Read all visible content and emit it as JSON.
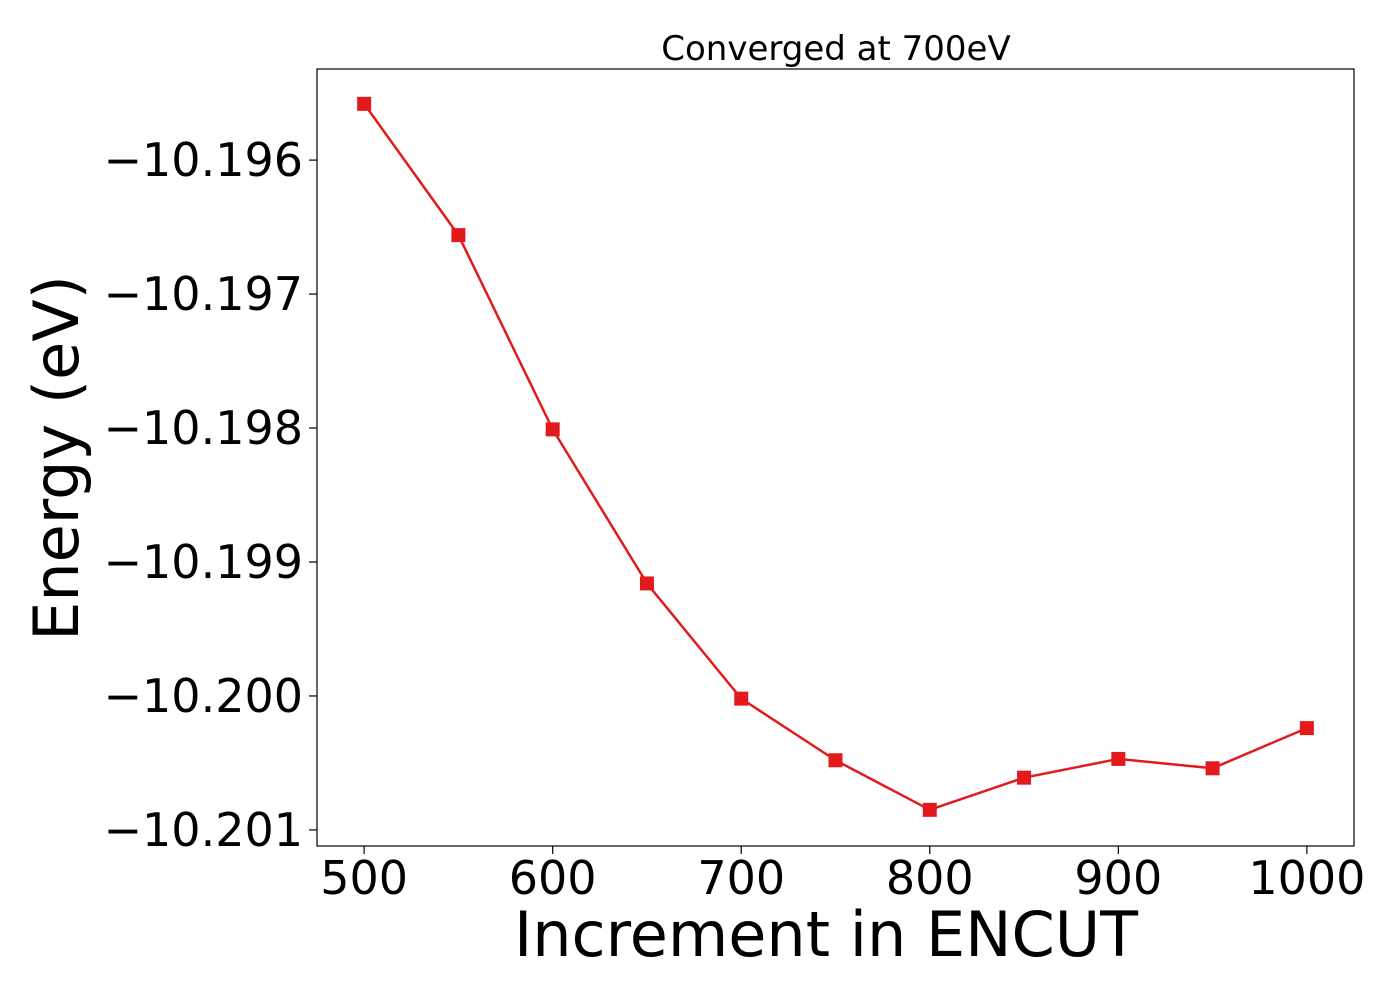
{
  "chart_data": {
    "type": "line",
    "title": "Converged at 700eV",
    "xlabel": "Increment in ENCUT",
    "ylabel": "Energy (eV)",
    "xlim": [
      475,
      1025
    ],
    "ylim": [
      -10.20112,
      -10.19532
    ],
    "xticks": [
      500,
      600,
      700,
      800,
      900,
      1000
    ],
    "xtick_labels": [
      "500",
      "600",
      "700",
      "800",
      "900",
      "1000"
    ],
    "yticks": [
      -10.196,
      -10.197,
      -10.198,
      -10.199,
      -10.2,
      -10.201
    ],
    "ytick_labels": [
      "−10.196",
      "−10.197",
      "−10.198",
      "−10.199",
      "−10.200",
      "−10.201"
    ],
    "grid": false,
    "legend": "none",
    "series": [
      {
        "color": "#e31a1c",
        "marker": "square",
        "x": [
          500,
          550,
          600,
          650,
          700,
          750,
          800,
          850,
          900,
          950,
          1000
        ],
        "y": [
          -10.19558,
          -10.19656,
          -10.19801,
          -10.19916,
          -10.20002,
          -10.20048,
          -10.20085,
          -10.20061,
          -10.20047,
          -10.20054,
          -10.20024
        ]
      }
    ]
  }
}
